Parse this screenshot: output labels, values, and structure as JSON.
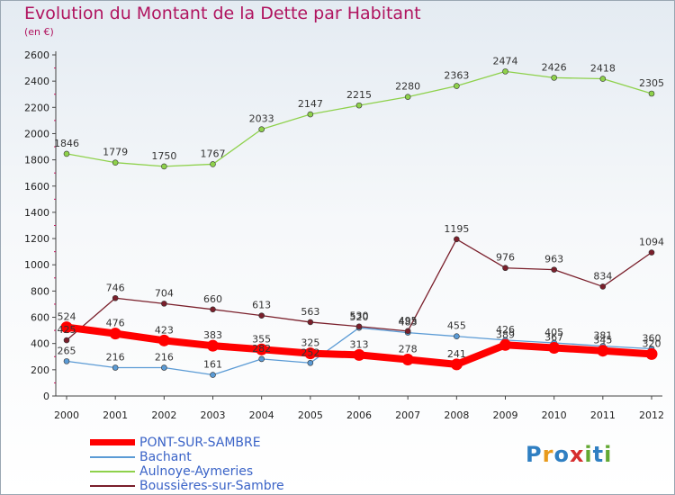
{
  "title": "Evolution du Montant de la Dette par Habitant",
  "unit": "(en €)",
  "logo": [
    "P",
    "r",
    "o",
    "x",
    "i",
    "t",
    "i"
  ],
  "logo_colors": [
    "#2f7fc2",
    "#e89a1c",
    "#2f7fc2",
    "#d62d2d",
    "#63a833",
    "#2f7fc2",
    "#63a833"
  ],
  "chart_data": {
    "type": "line",
    "categories": [
      "2000",
      "2001",
      "2002",
      "2003",
      "2004",
      "2005",
      "2006",
      "2007",
      "2008",
      "2009",
      "2010",
      "2011",
      "2012"
    ],
    "ylim": [
      0,
      2600
    ],
    "yticks": [
      "0",
      "200",
      "400",
      "600",
      "800",
      "1000",
      "1200",
      "1400",
      "1600",
      "1800",
      "2000",
      "2200",
      "2400",
      "2600"
    ],
    "grid": false,
    "legend_position": "bottom-left",
    "series": [
      {
        "name": "PONT-SUR-SAMBRE",
        "color": "#ff0000",
        "values": [
          524,
          476,
          423,
          383,
          355,
          325,
          313,
          278,
          241,
          389,
          367,
          345,
          320
        ]
      },
      {
        "name": "Bachant",
        "color": "#5b9bd5",
        "values": [
          265,
          216,
          216,
          161,
          282,
          252,
          520,
          483,
          455,
          426,
          405,
          381,
          360
        ]
      },
      {
        "name": "Aulnoye-Aymeries",
        "color": "#8ed14b",
        "values": [
          1846,
          1779,
          1750,
          1767,
          2033,
          2147,
          2215,
          2280,
          2363,
          2474,
          2426,
          2418,
          2305
        ]
      },
      {
        "name": "Boussières-sur-Sambre",
        "color": "#7a1f2b",
        "values": [
          425,
          746,
          704,
          660,
          613,
          563,
          530,
          495,
          1195,
          976,
          963,
          834,
          1094
        ]
      }
    ]
  }
}
